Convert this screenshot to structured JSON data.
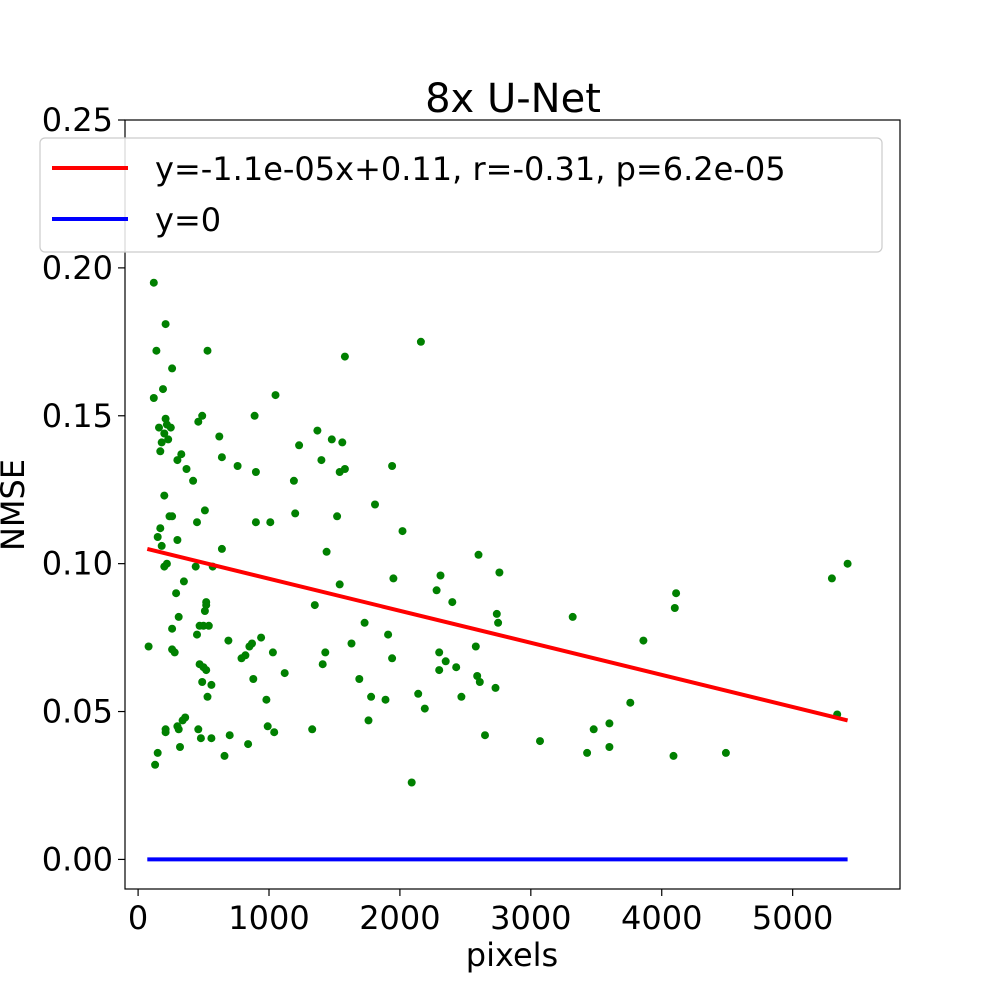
{
  "chart_data": {
    "type": "scatter",
    "title": "8x  U-Net",
    "xlabel": "pixels",
    "ylabel": "NMSE",
    "xlim": [
      -100,
      5820
    ],
    "ylim": [
      -0.01,
      0.25
    ],
    "xticks": [
      0,
      1000,
      2000,
      3000,
      4000,
      5000
    ],
    "xtick_labels": [
      "0",
      "1000",
      "2000",
      "3000",
      "4000",
      "5000"
    ],
    "yticks": [
      0.0,
      0.05,
      0.1,
      0.15,
      0.2,
      0.25
    ],
    "ytick_labels": [
      "0.00",
      "0.05",
      "0.10",
      "0.15",
      "0.20",
      "0.25"
    ],
    "grid": false,
    "legend_position": "top",
    "point_color": "#008000",
    "series": [
      {
        "kind": "points",
        "points": [
          [
            80,
            0.072
          ],
          [
            120,
            0.195
          ],
          [
            120,
            0.156
          ],
          [
            130,
            0.032
          ],
          [
            140,
            0.172
          ],
          [
            150,
            0.036
          ],
          [
            150,
            0.109
          ],
          [
            160,
            0.146
          ],
          [
            170,
            0.138
          ],
          [
            170,
            0.112
          ],
          [
            180,
            0.141
          ],
          [
            180,
            0.106
          ],
          [
            190,
            0.159
          ],
          [
            200,
            0.099
          ],
          [
            200,
            0.123
          ],
          [
            200,
            0.144
          ],
          [
            210,
            0.181
          ],
          [
            210,
            0.149
          ],
          [
            210,
            0.043
          ],
          [
            210,
            0.044
          ],
          [
            220,
            0.1
          ],
          [
            220,
            0.147
          ],
          [
            230,
            0.142
          ],
          [
            240,
            0.116
          ],
          [
            250,
            0.146
          ],
          [
            260,
            0.166
          ],
          [
            260,
            0.078
          ],
          [
            260,
            0.116
          ],
          [
            260,
            0.071
          ],
          [
            280,
            0.07
          ],
          [
            290,
            0.09
          ],
          [
            300,
            0.108
          ],
          [
            300,
            0.135
          ],
          [
            300,
            0.045
          ],
          [
            310,
            0.082
          ],
          [
            310,
            0.044
          ],
          [
            320,
            0.038
          ],
          [
            330,
            0.137
          ],
          [
            340,
            0.047
          ],
          [
            350,
            0.094
          ],
          [
            360,
            0.048
          ],
          [
            370,
            0.132
          ],
          [
            420,
            0.128
          ],
          [
            440,
            0.099
          ],
          [
            450,
            0.114
          ],
          [
            450,
            0.076
          ],
          [
            460,
            0.148
          ],
          [
            460,
            0.044
          ],
          [
            470,
            0.079
          ],
          [
            470,
            0.066
          ],
          [
            480,
            0.041
          ],
          [
            490,
            0.06
          ],
          [
            490,
            0.15
          ],
          [
            500,
            0.065
          ],
          [
            500,
            0.079
          ],
          [
            510,
            0.118
          ],
          [
            510,
            0.084
          ],
          [
            520,
            0.087
          ],
          [
            520,
            0.064
          ],
          [
            520,
            0.086
          ],
          [
            530,
            0.172
          ],
          [
            530,
            0.055
          ],
          [
            540,
            0.079
          ],
          [
            560,
            0.059
          ],
          [
            560,
            0.041
          ],
          [
            570,
            0.099
          ],
          [
            620,
            0.143
          ],
          [
            640,
            0.136
          ],
          [
            640,
            0.105
          ],
          [
            660,
            0.035
          ],
          [
            690,
            0.074
          ],
          [
            700,
            0.042
          ],
          [
            760,
            0.133
          ],
          [
            790,
            0.068
          ],
          [
            820,
            0.069
          ],
          [
            840,
            0.039
          ],
          [
            850,
            0.072
          ],
          [
            870,
            0.073
          ],
          [
            880,
            0.061
          ],
          [
            890,
            0.15
          ],
          [
            900,
            0.131
          ],
          [
            900,
            0.114
          ],
          [
            940,
            0.075
          ],
          [
            980,
            0.054
          ],
          [
            990,
            0.045
          ],
          [
            1010,
            0.114
          ],
          [
            1030,
            0.07
          ],
          [
            1040,
            0.043
          ],
          [
            1050,
            0.157
          ],
          [
            1120,
            0.063
          ],
          [
            1190,
            0.128
          ],
          [
            1200,
            0.117
          ],
          [
            1230,
            0.14
          ],
          [
            1330,
            0.044
          ],
          [
            1350,
            0.086
          ],
          [
            1370,
            0.145
          ],
          [
            1400,
            0.135
          ],
          [
            1410,
            0.066
          ],
          [
            1430,
            0.07
          ],
          [
            1440,
            0.104
          ],
          [
            1480,
            0.142
          ],
          [
            1520,
            0.116
          ],
          [
            1540,
            0.131
          ],
          [
            1540,
            0.093
          ],
          [
            1560,
            0.141
          ],
          [
            1580,
            0.132
          ],
          [
            1580,
            0.17
          ],
          [
            1630,
            0.073
          ],
          [
            1690,
            0.061
          ],
          [
            1730,
            0.08
          ],
          [
            1760,
            0.047
          ],
          [
            1780,
            0.055
          ],
          [
            1810,
            0.12
          ],
          [
            1890,
            0.054
          ],
          [
            1910,
            0.076
          ],
          [
            1940,
            0.068
          ],
          [
            1940,
            0.133
          ],
          [
            1950,
            0.095
          ],
          [
            2020,
            0.111
          ],
          [
            2090,
            0.026
          ],
          [
            2140,
            0.056
          ],
          [
            2160,
            0.175
          ],
          [
            2190,
            0.051
          ],
          [
            2300,
            0.064
          ],
          [
            2280,
            0.091
          ],
          [
            2310,
            0.096
          ],
          [
            2300,
            0.07
          ],
          [
            2350,
            0.067
          ],
          [
            2400,
            0.087
          ],
          [
            2430,
            0.065
          ],
          [
            2470,
            0.055
          ],
          [
            2580,
            0.072
          ],
          [
            2590,
            0.062
          ],
          [
            2600,
            0.103
          ],
          [
            2610,
            0.06
          ],
          [
            2650,
            0.042
          ],
          [
            2730,
            0.058
          ],
          [
            2740,
            0.083
          ],
          [
            2750,
            0.08
          ],
          [
            2760,
            0.097
          ],
          [
            3070,
            0.04
          ],
          [
            3320,
            0.082
          ],
          [
            3430,
            0.036
          ],
          [
            3480,
            0.044
          ],
          [
            3600,
            0.046
          ],
          [
            3600,
            0.038
          ],
          [
            3760,
            0.053
          ],
          [
            3860,
            0.074
          ],
          [
            4090,
            0.035
          ],
          [
            4100,
            0.085
          ],
          [
            4110,
            0.09
          ],
          [
            4490,
            0.036
          ],
          [
            5300,
            0.095
          ],
          [
            5340,
            0.049
          ],
          [
            5420,
            0.1
          ]
        ]
      },
      {
        "kind": "line",
        "name": "y=-1.1e-05x+0.11, r=-0.31, p=6.2e-05",
        "color": "#ff0000",
        "x": [
          70,
          5420
        ],
        "y": [
          0.105,
          0.047
        ]
      },
      {
        "kind": "line",
        "name": "y=0",
        "color": "#0000ff",
        "x": [
          70,
          5420
        ],
        "y": [
          0.0,
          0.0
        ]
      }
    ]
  }
}
